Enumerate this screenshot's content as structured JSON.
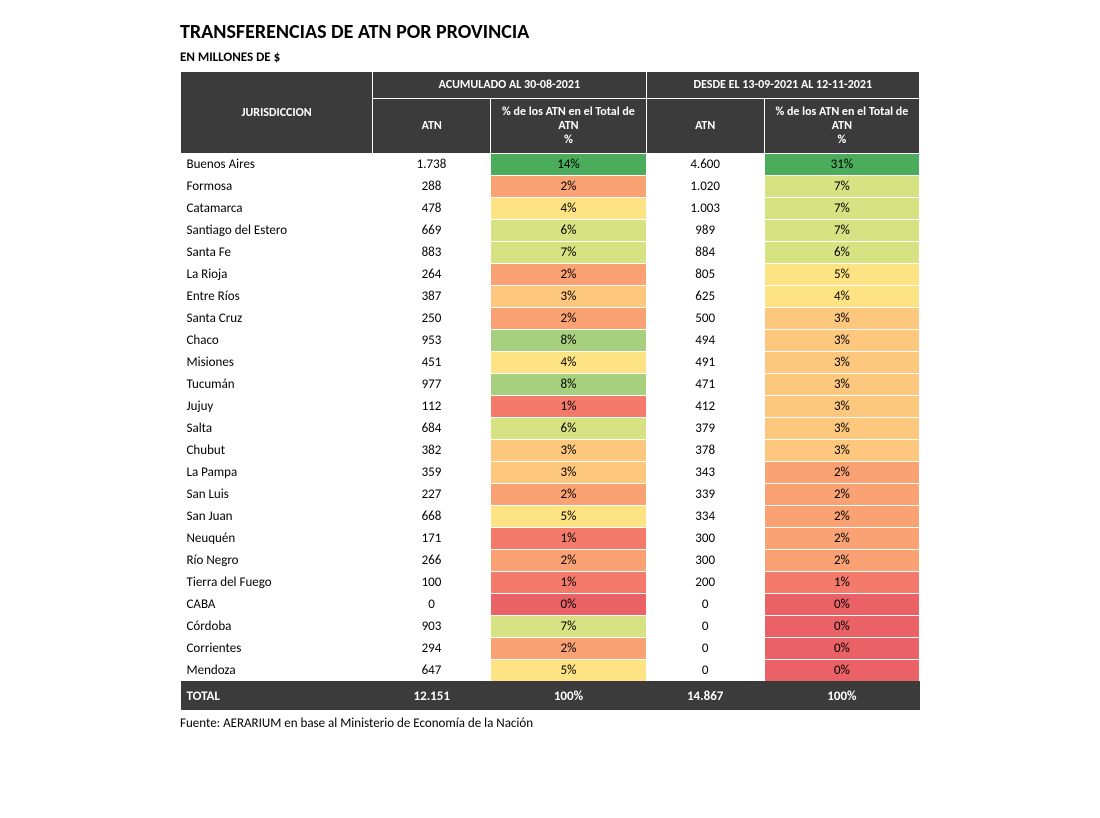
{
  "title": "TRANSFERENCIAS DE ATN POR PROVINCIA",
  "subtitle": "EN MILLONES DE $",
  "source": "Fuente: AERARIUM en base al Ministerio de Economía de la Nación",
  "header": {
    "jurisdiccion": "JURISDICCION",
    "period1_group": "ACUMULADO AL 30-08-2021",
    "period2_group": "DESDE EL 13-09-2021 AL 12-11-2021",
    "atn": "ATN",
    "pct": "% de los ATN en el Total de ATN\n%"
  },
  "colors": {
    "header_bg": "#3b3b3b",
    "header_fg": "#ffffff",
    "row_bg": "#ffffff",
    "heat_green": "#4bac5b",
    "heat_lightgreen": "#a7d07e",
    "heat_yellowgreen": "#d7e283",
    "heat_yellow": "#fde383",
    "heat_lightorange": "#fdc77d",
    "heat_orange": "#faa273",
    "heat_red": "#f47a6c",
    "heat_darkred": "#ea6265"
  },
  "heat": {
    "14": "heat_green",
    "31": "heat_green",
    "8": "heat_lightgreen",
    "7": "heat_yellowgreen",
    "6": "heat_yellowgreen",
    "5": "heat_yellow",
    "4": "heat_yellow",
    "3": "heat_lightorange",
    "2": "heat_orange",
    "1": "heat_red",
    "0": "heat_darkred"
  },
  "rows": [
    {
      "jur": "Buenos Aires",
      "atn1": "1.738",
      "pct1": 14,
      "atn2": "4.600",
      "pct2": 31
    },
    {
      "jur": "Formosa",
      "atn1": "288",
      "pct1": 2,
      "atn2": "1.020",
      "pct2": 7
    },
    {
      "jur": "Catamarca",
      "atn1": "478",
      "pct1": 4,
      "atn2": "1.003",
      "pct2": 7
    },
    {
      "jur": "Santiago del Estero",
      "atn1": "669",
      "pct1": 6,
      "atn2": "989",
      "pct2": 7
    },
    {
      "jur": "Santa Fe",
      "atn1": "883",
      "pct1": 7,
      "atn2": "884",
      "pct2": 6
    },
    {
      "jur": "La Rioja",
      "atn1": "264",
      "pct1": 2,
      "atn2": "805",
      "pct2": 5
    },
    {
      "jur": "Entre Ríos",
      "atn1": "387",
      "pct1": 3,
      "atn2": "625",
      "pct2": 4
    },
    {
      "jur": "Santa Cruz",
      "atn1": "250",
      "pct1": 2,
      "atn2": "500",
      "pct2": 3
    },
    {
      "jur": "Chaco",
      "atn1": "953",
      "pct1": 8,
      "atn2": "494",
      "pct2": 3
    },
    {
      "jur": "Misiones",
      "atn1": "451",
      "pct1": 4,
      "atn2": "491",
      "pct2": 3
    },
    {
      "jur": "Tucumán",
      "atn1": "977",
      "pct1": 8,
      "atn2": "471",
      "pct2": 3
    },
    {
      "jur": "Jujuy",
      "atn1": "112",
      "pct1": 1,
      "atn2": "412",
      "pct2": 3
    },
    {
      "jur": "Salta",
      "atn1": "684",
      "pct1": 6,
      "atn2": "379",
      "pct2": 3
    },
    {
      "jur": "Chubut",
      "atn1": "382",
      "pct1": 3,
      "atn2": "378",
      "pct2": 3
    },
    {
      "jur": "La Pampa",
      "atn1": "359",
      "pct1": 3,
      "atn2": "343",
      "pct2": 2
    },
    {
      "jur": "San Luis",
      "atn1": "227",
      "pct1": 2,
      "atn2": "339",
      "pct2": 2
    },
    {
      "jur": "San Juan",
      "atn1": "668",
      "pct1": 5,
      "atn2": "334",
      "pct2": 2
    },
    {
      "jur": "Neuquén",
      "atn1": "171",
      "pct1": 1,
      "atn2": "300",
      "pct2": 2
    },
    {
      "jur": "Río Negro",
      "atn1": "266",
      "pct1": 2,
      "atn2": "300",
      "pct2": 2
    },
    {
      "jur": "Tierra del Fuego",
      "atn1": "100",
      "pct1": 1,
      "atn2": "200",
      "pct2": 1
    },
    {
      "jur": "CABA",
      "atn1": "0",
      "pct1": 0,
      "atn2": "0",
      "pct2": 0
    },
    {
      "jur": "Córdoba",
      "atn1": "903",
      "pct1": 7,
      "atn2": "0",
      "pct2": 0
    },
    {
      "jur": "Corrientes",
      "atn1": "294",
      "pct1": 2,
      "atn2": "0",
      "pct2": 0
    },
    {
      "jur": "Mendoza",
      "atn1": "647",
      "pct1": 5,
      "atn2": "0",
      "pct2": 0
    }
  ],
  "total": {
    "label": "TOTAL",
    "atn1": "12.151",
    "pct1": "100%",
    "atn2": "14.867",
    "pct2": "100%"
  }
}
